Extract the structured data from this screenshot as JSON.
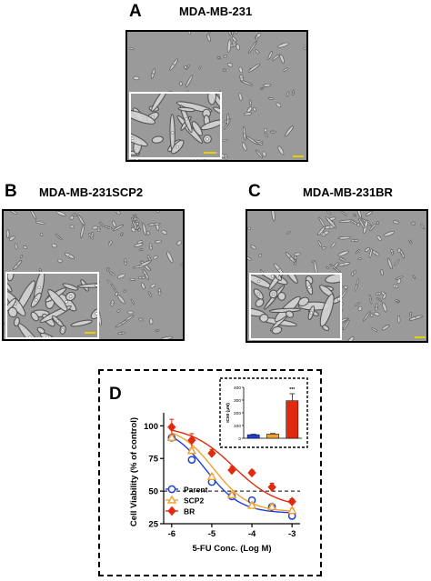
{
  "panels": {
    "a": {
      "letter": "A",
      "title": "MDA-MB-231"
    },
    "b": {
      "letter": "B",
      "title": "MDA-MB-231SCP2"
    },
    "c": {
      "letter": "C",
      "title": "MDA-MB-231BR"
    },
    "d": {
      "letter": "D"
    }
  },
  "colors": {
    "micro_bg": "#9a9a9a",
    "cell": "#d4d4d4",
    "cell_edge": "#4a4a4a",
    "scalebar": "#e8d000",
    "parent": "#1f3fd6",
    "scp2": "#f0a030",
    "br": "#e02a10"
  },
  "chart_data": [
    {
      "type": "line",
      "xlabel": "5-FU Conc. (Log M)",
      "ylabel": "Cell Viability (% of control)",
      "xlim": [
        -6.2,
        -2.8
      ],
      "ylim": [
        25,
        110
      ],
      "xticks": [
        "-6",
        "-5",
        "-4",
        "-3"
      ],
      "yticks": [
        "25",
        "50",
        "75",
        "100"
      ],
      "reference_line": {
        "y": 50,
        "style": "dashed"
      },
      "legend_position": "bottom-left",
      "x": [
        -6,
        -5.5,
        -5,
        -4.5,
        -4,
        -3.5,
        -3
      ],
      "series": [
        {
          "name": "Parent",
          "marker": "circle-open",
          "color": "#1f3fd6",
          "values": [
            91,
            74,
            57,
            46,
            43,
            38,
            31
          ],
          "errors": [
            2,
            2,
            2,
            2,
            2,
            2,
            2
          ]
        },
        {
          "name": "SCP2",
          "marker": "triangle-open",
          "color": "#f0a030",
          "values": [
            91,
            81,
            61,
            47,
            39,
            38,
            35
          ],
          "errors": [
            2,
            2,
            2,
            2,
            2,
            2,
            2
          ]
        },
        {
          "name": "BR",
          "marker": "diamond-filled",
          "color": "#e02a10",
          "values": [
            99,
            89,
            79,
            66,
            64,
            53,
            42
          ],
          "errors": [
            6,
            5,
            3,
            3,
            2,
            3,
            2
          ]
        }
      ],
      "fits": [
        {
          "series": "Parent",
          "bottom": 33,
          "top": 100,
          "logic50": -5.15,
          "hill": 1.0
        },
        {
          "series": "SCP2",
          "bottom": 34,
          "top": 100,
          "logic50": -4.95,
          "hill": 1.0
        },
        {
          "series": "BR",
          "bottom": 37,
          "top": 100,
          "logic50": -4.45,
          "hill": 0.8
        }
      ]
    },
    {
      "type": "bar",
      "ylabel": "IC50 (μM)",
      "ylim": [
        0,
        400
      ],
      "yticks": [
        "0",
        "100",
        "200",
        "300",
        "400"
      ],
      "categories": [
        "Parent",
        "SCP2",
        "BR"
      ],
      "values": [
        28,
        33,
        295
      ],
      "errors": [
        3,
        4,
        55
      ],
      "colors": [
        "#1f3fd6",
        "#f0a030",
        "#e02a10"
      ],
      "annotations": [
        {
          "category": "BR",
          "text": "***"
        }
      ]
    }
  ]
}
